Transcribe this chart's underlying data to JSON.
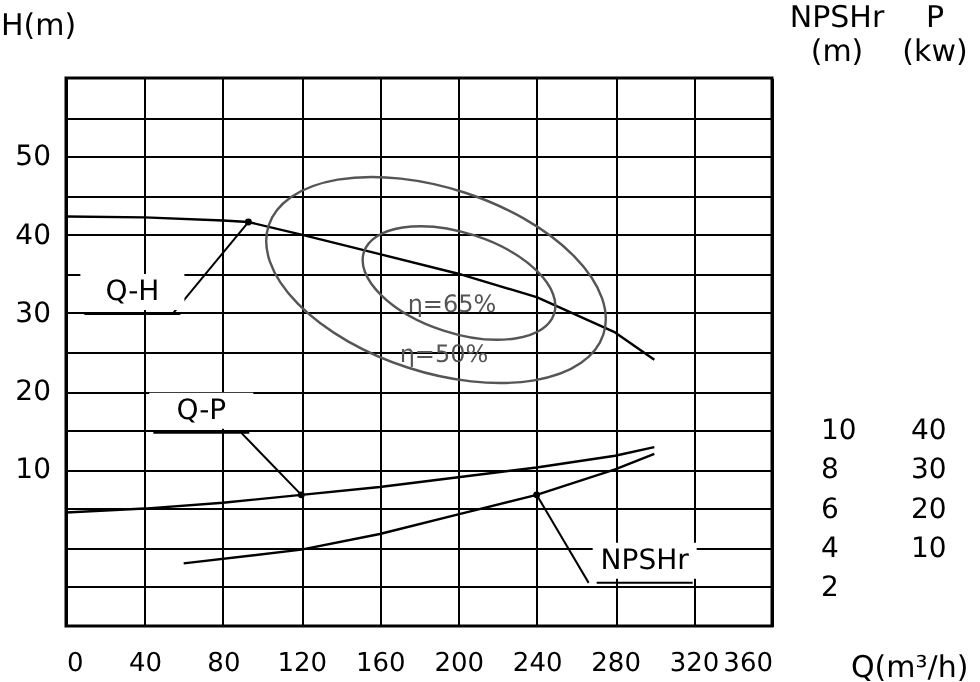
{
  "chart_data": {
    "type": "line",
    "xlabel": "Q(m³/h)",
    "ylabel": "H(m)",
    "y2label": "NPSHr (m)",
    "y3label": "P (kw)",
    "xlim": [
      0,
      360
    ],
    "xticks": [
      0,
      40,
      80,
      120,
      160,
      200,
      240,
      280,
      320,
      360
    ],
    "ylim": [
      -10,
      60
    ],
    "yticks": [
      {
        "value": -5,
        "label": null
      },
      {
        "value": 0,
        "label": null
      },
      {
        "value": 5,
        "label": null
      },
      10,
      {
        "value": 15,
        "label": null
      },
      20,
      {
        "value": 25,
        "label": null
      },
      30,
      {
        "value": 35,
        "label": null
      },
      40,
      {
        "value": 45,
        "label": null
      },
      50,
      {
        "value": 55,
        "label": null
      }
    ],
    "y2lim": [
      0,
      28
    ],
    "y2ticks": [
      2,
      4,
      6,
      8,
      10
    ],
    "y3lim": [
      -10,
      130
    ],
    "y3ticks": [
      10,
      20,
      30,
      40
    ],
    "grid": true,
    "series": [
      {
        "name": "Q-H",
        "color": "#000000",
        "x": [
          0,
          40,
          80,
          93,
          120,
          160,
          200,
          240,
          280,
          300
        ],
        "values": [
          42.3,
          42.2,
          41.8,
          41.6,
          40,
          37.5,
          35,
          32,
          27.5,
          24
        ]
      },
      {
        "name": "Q-P",
        "color": "#000000",
        "axis": "y3",
        "x": [
          0,
          40,
          80,
          120,
          160,
          200,
          240,
          280,
          300
        ],
        "values": [
          19,
          20,
          21.5,
          23.5,
          25.5,
          28,
          30.5,
          33.5,
          35.7
        ]
      },
      {
        "name": "NPSHr",
        "color": "#000000",
        "axis": "y2",
        "x": [
          60,
          120,
          160,
          200,
          240,
          280,
          300
        ],
        "values": [
          3.2,
          3.9,
          4.7,
          5.7,
          6.7,
          8,
          8.8
        ]
      }
    ],
    "annotations": [
      "η=65%",
      "η=50%"
    ]
  }
}
